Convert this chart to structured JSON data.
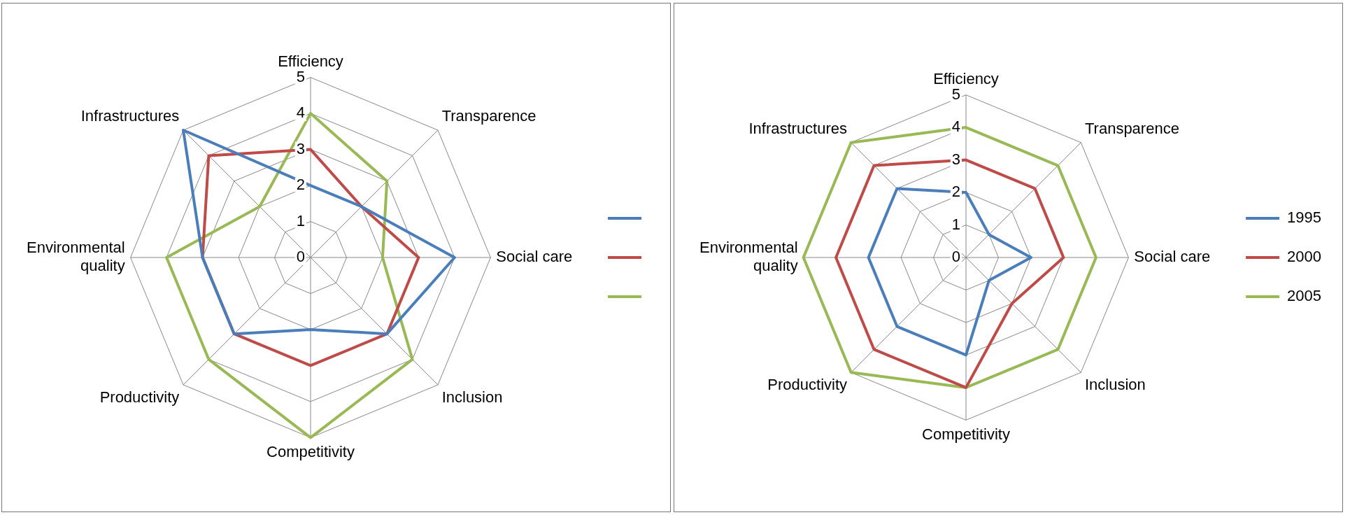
{
  "chart_data": [
    {
      "type": "radar",
      "categories": [
        "Efficiency",
        "Transparence",
        "Social care",
        "Inclusion",
        "Competitivity",
        "Productivity",
        "Environmental quality",
        "Infrastructures"
      ],
      "ylim": [
        0,
        5
      ],
      "yticks": [
        0,
        1,
        2,
        3,
        4,
        5
      ],
      "grid": true,
      "legend": "right",
      "marker": "none",
      "series": [
        {
          "color": "#4a7ebb",
          "values": [
            2,
            2,
            4,
            3,
            2,
            3,
            3,
            5
          ]
        },
        {
          "color": "#be4b48",
          "values": [
            3,
            2,
            3,
            3,
            3,
            3,
            3,
            4
          ]
        },
        {
          "color": "#98b954",
          "values": [
            4,
            3,
            2,
            4,
            5,
            4,
            4,
            2
          ]
        }
      ]
    },
    {
      "type": "radar",
      "categories": [
        "Efficiency",
        "Transparence",
        "Social care",
        "Inclusion",
        "Competitivity",
        "Productivity",
        "Environmental quality",
        "Infrastructures"
      ],
      "ylim": [
        0,
        5
      ],
      "yticks": [
        0,
        1,
        2,
        3,
        4,
        5
      ],
      "grid": true,
      "legend": "right",
      "marker": "none",
      "series": [
        {
          "name": "1995",
          "color": "#4a7ebb",
          "values": [
            2,
            1,
            2,
            1,
            3,
            3,
            3,
            3
          ]
        },
        {
          "name": "2000",
          "color": "#be4b48",
          "values": [
            3,
            3,
            3,
            2,
            4,
            4,
            4,
            4
          ]
        },
        {
          "name": "2005",
          "color": "#98b954",
          "values": [
            4,
            4,
            4,
            4,
            4,
            5,
            5,
            5
          ]
        }
      ]
    }
  ]
}
